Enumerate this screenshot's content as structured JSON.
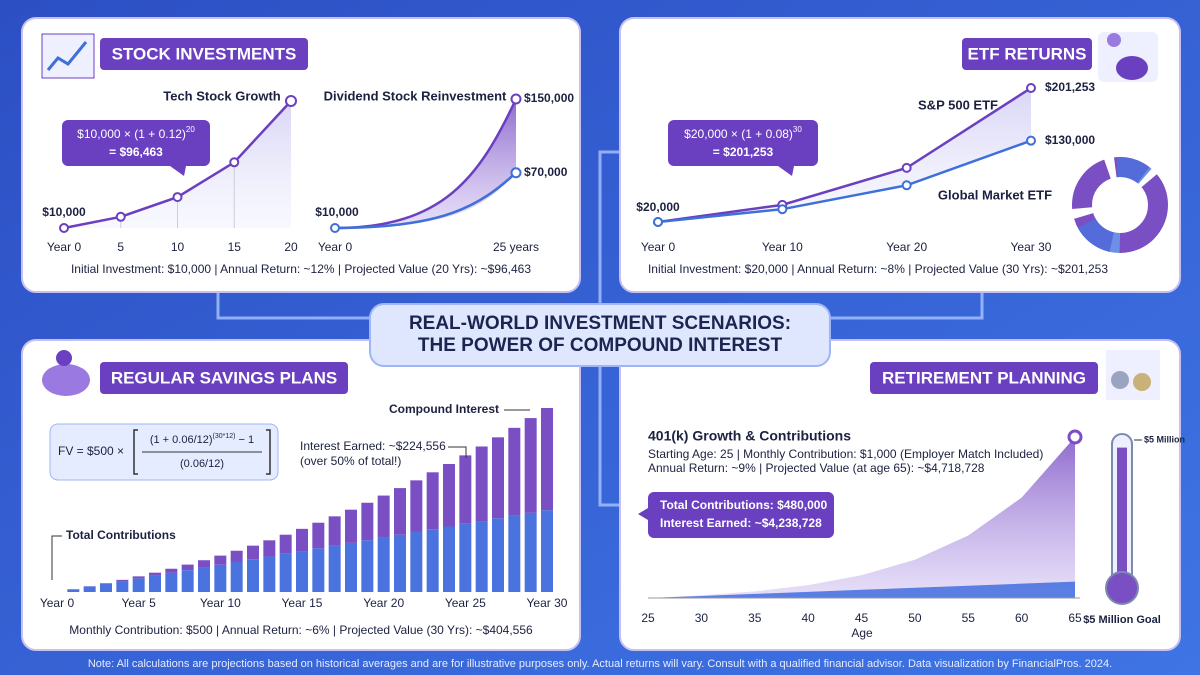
{
  "title_lines": [
    "REAL-WORLD INVESTMENT SCENARIOS:",
    "THE POWER OF COMPOUND INTEREST"
  ],
  "stock": {
    "heading": "STOCK INVESTMENTS",
    "tech": {
      "title": "Tech Stock Growth",
      "x": [
        0,
        5,
        10,
        15,
        20
      ],
      "x_ticks": [
        {
          "value": 0,
          "label": "Year 0"
        },
        5,
        10,
        15,
        20
      ],
      "values": [
        10000,
        17623,
        31058,
        54736,
        96463
      ],
      "start_label": "$10,000",
      "color": "#6a3fc0",
      "formula": {
        "base": "$10,000 × (1 + 0.12)",
        "exp": "20",
        "result": "= $96,463"
      }
    },
    "dividend": {
      "title": "Dividend Stock Reinvestment",
      "x": [
        0,
        25
      ],
      "x_ticks": [
        {
          "value": 0,
          "label": "Year 0"
        },
        {
          "value": 25,
          "label": "25 years"
        }
      ],
      "start_label": "$10,000",
      "series": [
        {
          "color": "#6a3fc0",
          "values": [
            10000,
            150000
          ],
          "end_label": "$150,000"
        },
        {
          "color": "#3f6fd8",
          "values": [
            10000,
            70000
          ],
          "end_label": "$70,000"
        }
      ]
    },
    "footer": "Initial Investment: $10,000 | Annual Return: ~12% | Projected Value (20 Yrs): ~$96,463"
  },
  "etf": {
    "heading": "ETF RETURNS",
    "x": [
      0,
      10,
      20,
      30
    ],
    "x_ticks": [
      {
        "value": 0,
        "label": "Year 0"
      },
      {
        "value": 10,
        "label": "Year 10"
      },
      {
        "value": 20,
        "label": "Year 20"
      },
      {
        "value": 30,
        "label": "Year 30"
      }
    ],
    "start_label": "$20,000",
    "series": [
      {
        "name": "S&P 500 ETF",
        "color": "#6a3fc0",
        "values": [
          20000,
          43178,
          93219,
          201253
        ],
        "end_label": "$201,253"
      },
      {
        "name": "Global Market ETF",
        "color": "#3f6fd8",
        "values": [
          20000,
          37330,
          69640,
          130000
        ],
        "end_label": "$130,000"
      }
    ],
    "formula": {
      "base": "$20,000 × (1 + 0.08)",
      "exp": "30",
      "result": "= $201,253"
    },
    "footer": "Initial Investment: $20,000 | Annual Return: ~8% | Projected Value (30 Yrs): ~$201,253"
  },
  "savings": {
    "heading": "REGULAR SAVINGS PLANS",
    "formula": {
      "lhs": "FV = $500 ×",
      "num": "(1 + 0.06/12)",
      "exp": "(30*12)",
      "minus": " − 1",
      "den": "(0.06/12)"
    },
    "years": [
      1,
      2,
      3,
      4,
      5,
      6,
      7,
      8,
      9,
      10,
      11,
      12,
      13,
      14,
      15,
      16,
      17,
      18,
      19,
      20,
      21,
      22,
      23,
      24,
      25,
      26,
      27,
      28,
      29,
      30
    ],
    "x_ticks": [
      {
        "value": 0,
        "label": "Year 0"
      },
      {
        "value": 5,
        "label": "Year 5"
      },
      {
        "value": 10,
        "label": "Year 10"
      },
      {
        "value": 15,
        "label": "Year 15"
      },
      {
        "value": 20,
        "label": "Year 20"
      },
      {
        "value": 25,
        "label": "Year 25"
      },
      {
        "value": 30,
        "label": "Year 30"
      }
    ],
    "series": [
      {
        "name": "Total Contributions",
        "color": "#4a73e0",
        "values": [
          6000,
          12000,
          18000,
          24000,
          30000,
          36000,
          42000,
          48000,
          54000,
          60000,
          66000,
          72000,
          78000,
          84000,
          90000,
          96000,
          102000,
          108000,
          114000,
          120000,
          126000,
          132000,
          138000,
          144000,
          150000,
          156000,
          162000,
          168000,
          174000,
          180000
        ]
      },
      {
        "name": "Compound Interest",
        "color": "#7b4fc4",
        "values": [
          126,
          581,
          1417,
          2668,
          4359,
          6510,
          9142,
          12259,
          15883,
          20026,
          24701,
          29911,
          35660,
          41992,
          48864,
          56319,
          64358,
          73003,
          82210,
          92023,
          102465,
          113491,
          125168,
          137451,
          150363,
          163926,
          178095,
          192938,
          208410,
          224556
        ]
      }
    ],
    "interest_note": "Interest Earned: ~$224,556",
    "interest_sub": "(over 50% of total!)",
    "footer": "Monthly Contribution: $500 | Annual Return: ~6% | Projected Value (30 Yrs): ~$404,556"
  },
  "retirement": {
    "heading": "RETIREMENT PLANNING",
    "subtitle": "401(k) Growth & Contributions",
    "info": [
      "Starting Age: 25 | Monthly Contribution: $1,000 (Employer Match Included)",
      "Annual Return: ~9% | Projected Value (at age 65): ~$4,718,728"
    ],
    "callout": [
      "Total Contributions: $480,000",
      "Interest Earned: ~$4,238,728"
    ],
    "x": [
      25,
      30,
      35,
      40,
      45,
      50,
      55,
      60,
      65
    ],
    "x_ticks": [
      25,
      30,
      35,
      40,
      45,
      50,
      55,
      60,
      65
    ],
    "x_label": "Age",
    "series": [
      {
        "color": "#7b4fc4",
        "values": [
          0,
          75424,
          193514,
          378410,
          667227,
          1121121,
          1830743,
          2941728,
          4718728
        ]
      },
      {
        "color": "#4a73e0",
        "values": [
          0,
          60000,
          120000,
          180000,
          240000,
          300000,
          360000,
          420000,
          480000
        ]
      }
    ],
    "goal": {
      "value": 5000000,
      "label": "$5 Million"
    },
    "goal_caption": "$5 Million Goal"
  },
  "note": "Note: All calculations are projections based on historical averages and are for illustrative purposes only. Actual returns will vary. Consult with a qualified financial advisor. Data visualization by FinancialPros. 2024."
}
